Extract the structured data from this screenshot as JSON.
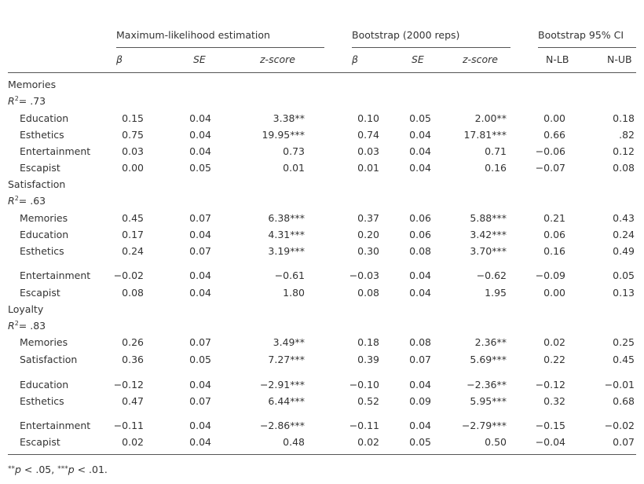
{
  "table": {
    "groups": [
      "Maximum-likelihood estimation",
      "Bootstrap (2000 reps)",
      "Bootstrap 95% CI"
    ],
    "columns": [
      "β",
      "SE",
      "z-score",
      "β",
      "SE",
      "z-score",
      "N-LB",
      "N-UB"
    ],
    "sections": [
      {
        "name": "Memories",
        "r2": {
          "symbol": "R",
          "power": "2",
          "value": "= .73"
        },
        "rows": [
          {
            "label": "Education",
            "cells": [
              "0.15",
              "0.04",
              "3.38**",
              "0.10",
              "0.05",
              "2.00**",
              "0.00",
              "0.18"
            ]
          },
          {
            "label": "Esthetics",
            "cells": [
              "0.75",
              "0.04",
              "19.95***",
              "0.74",
              "0.04",
              "17.81***",
              "0.66",
              ".82"
            ]
          },
          {
            "label": "Entertainment",
            "cells": [
              "0.03",
              "0.04",
              "0.73",
              "0.03",
              "0.04",
              "0.71",
              "−0.06",
              "0.12"
            ]
          },
          {
            "label": "Escapist",
            "cells": [
              "0.00",
              "0.05",
              "0.01",
              "0.01",
              "0.04",
              "0.16",
              "−0.07",
              "0.08"
            ]
          }
        ]
      },
      {
        "name": "Satisfaction",
        "r2": {
          "symbol": "R",
          "power": "2",
          "value": "= .63"
        },
        "rows": [
          {
            "label": "Memories",
            "cells": [
              "0.45",
              "0.07",
              "6.38***",
              "0.37",
              "0.06",
              "5.88***",
              "0.21",
              "0.43"
            ]
          },
          {
            "label": "Education",
            "cells": [
              "0.17",
              "0.04",
              "4.31***",
              "0.20",
              "0.06",
              "3.42***",
              "0.06",
              "0.24"
            ]
          },
          {
            "label": "Esthetics",
            "cells": [
              "0.24",
              "0.07",
              "3.19***",
              "0.30",
              "0.08",
              "3.70***",
              "0.16",
              "0.49"
            ]
          },
          {
            "label": "Entertainment",
            "cells": [
              "−0.02",
              "0.04",
              "−0.61",
              "−0.03",
              "0.04",
              "−0.62",
              "−0.09",
              "0.05"
            ]
          },
          {
            "label": "Escapist",
            "cells": [
              "0.08",
              "0.04",
              "1.80",
              "0.08",
              "0.04",
              "1.95",
              "0.00",
              "0.13"
            ]
          }
        ]
      },
      {
        "name": "Loyalty",
        "r2": {
          "symbol": "R",
          "power": "2",
          "value": "= .83"
        },
        "rows": [
          {
            "label": "Memories",
            "cells": [
              "0.26",
              "0.07",
              "3.49**",
              "0.18",
              "0.08",
              "2.36**",
              "0.02",
              "0.25"
            ]
          },
          {
            "label": "Satisfaction",
            "cells": [
              "0.36",
              "0.05",
              "7.27***",
              "0.39",
              "0.07",
              "5.69***",
              "0.22",
              "0.45"
            ]
          },
          {
            "label": "Education",
            "cells": [
              "−0.12",
              "0.04",
              "−2.91***",
              "−0.10",
              "0.04",
              "−2.36**",
              "−0.12",
              "−0.01"
            ]
          },
          {
            "label": "Esthetics",
            "cells": [
              "0.47",
              "0.07",
              "6.44***",
              "0.52",
              "0.09",
              "5.95***",
              "0.32",
              "0.68"
            ]
          },
          {
            "label": "Entertainment",
            "cells": [
              "−0.11",
              "0.04",
              "−2.86***",
              "−0.11",
              "0.04",
              "−2.79***",
              "−0.15",
              "−0.02"
            ]
          },
          {
            "label": "Escapist",
            "cells": [
              "0.02",
              "0.04",
              "0.48",
              "0.02",
              "0.05",
              "0.50",
              "−0.04",
              "0.07"
            ]
          }
        ]
      }
    ],
    "footnote": [
      "**",
      "p",
      " < .05, ",
      "***",
      "p",
      " < .01."
    ]
  }
}
